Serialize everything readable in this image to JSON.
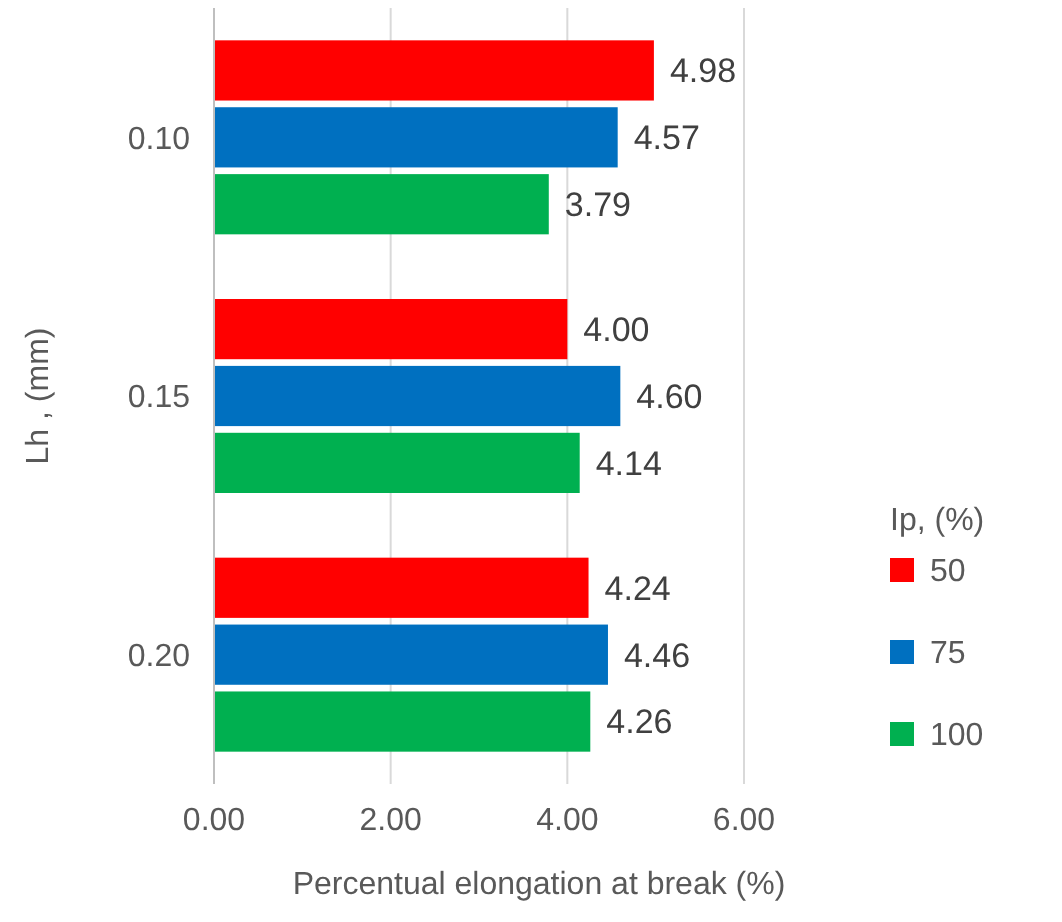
{
  "chart_data": {
    "type": "bar",
    "orientation": "horizontal",
    "xlabel": "Percentual elongation at break (%)",
    "ylabel": "Lh , (mm)",
    "legend_title": "Ip, (%)",
    "categories": [
      "0.10",
      "0.15",
      "0.20"
    ],
    "series": [
      {
        "name": "50",
        "color": "#ff0000",
        "values": [
          4.98,
          4.0,
          4.24
        ],
        "value_labels": [
          "4.98",
          "4.00",
          "4.24"
        ]
      },
      {
        "name": "75",
        "color": "#0070c0",
        "values": [
          4.57,
          4.6,
          4.46
        ],
        "value_labels": [
          "4.57",
          "4.60",
          "4.46"
        ]
      },
      {
        "name": "100",
        "color": "#00b050",
        "values": [
          3.79,
          4.14,
          4.26
        ],
        "value_labels": [
          "3.79",
          "4.14",
          "4.26"
        ]
      }
    ],
    "xlim": [
      0,
      6
    ],
    "xticks": [
      {
        "value": 0,
        "label": "0.00"
      },
      {
        "value": 2,
        "label": "2.00"
      },
      {
        "value": 4,
        "label": "4.00"
      },
      {
        "value": 6,
        "label": "6.00"
      }
    ],
    "grid": "x",
    "legend": "right"
  }
}
